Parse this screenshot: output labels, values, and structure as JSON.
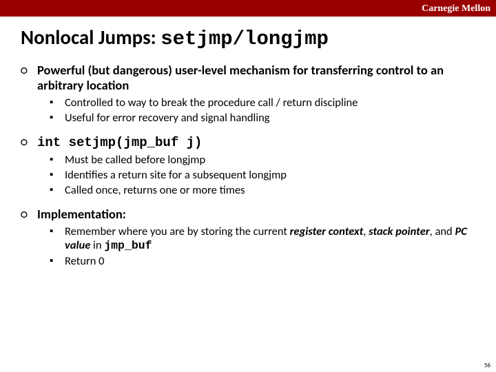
{
  "header": {
    "label": "Carnegie Mellon"
  },
  "title": {
    "plain": "Nonlocal Jumps: ",
    "code": "setjmp/longjmp"
  },
  "sections": [
    {
      "heading": "Powerful (but dangerous) user-level mechanism for transferring control to an arbitrary location",
      "heading_code": "",
      "subs": [
        {
          "text": "Controlled to way to break the procedure call / return discipline"
        },
        {
          "text": "Useful for error recovery and signal handling"
        }
      ]
    },
    {
      "heading": "",
      "heading_code": "int setjmp(jmp_buf j)",
      "subs": [
        {
          "text": "Must be called before longjmp"
        },
        {
          "text": "Identifies a return site for a subsequent longjmp"
        },
        {
          "text": "Called once, returns one or more times"
        }
      ]
    },
    {
      "heading": "Implementation:",
      "heading_code": "",
      "subs": [
        {
          "pre": "Remember where you are by storing  the current ",
          "b1": "register context",
          "mid1": ", ",
          "b2": "stack pointer",
          "mid2": ",  and ",
          "b3": "PC value",
          "mid3": " in ",
          "code": "jmp_buf"
        },
        {
          "text": "Return 0"
        }
      ]
    }
  ],
  "pageNumber": "56",
  "colors": {
    "headerBg": "#990000",
    "headerText": "#ffffff",
    "bodyBg": "#ffffff",
    "text": "#000000"
  }
}
